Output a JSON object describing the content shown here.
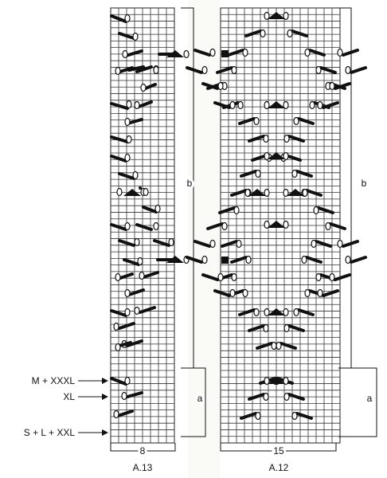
{
  "charts": [
    {
      "id": "a13",
      "name": "A.13",
      "stitch_count": "8",
      "columns": 8,
      "rows": 66
    },
    {
      "id": "a12",
      "name": "A.12",
      "stitch_count": "15",
      "columns": 15,
      "rows": 66
    }
  ],
  "sections": {
    "a": "a",
    "b": "b"
  },
  "size_markers": [
    {
      "label": "M + XXXL"
    },
    {
      "label": "XL"
    },
    {
      "label": "S + L + XXL"
    }
  ]
}
